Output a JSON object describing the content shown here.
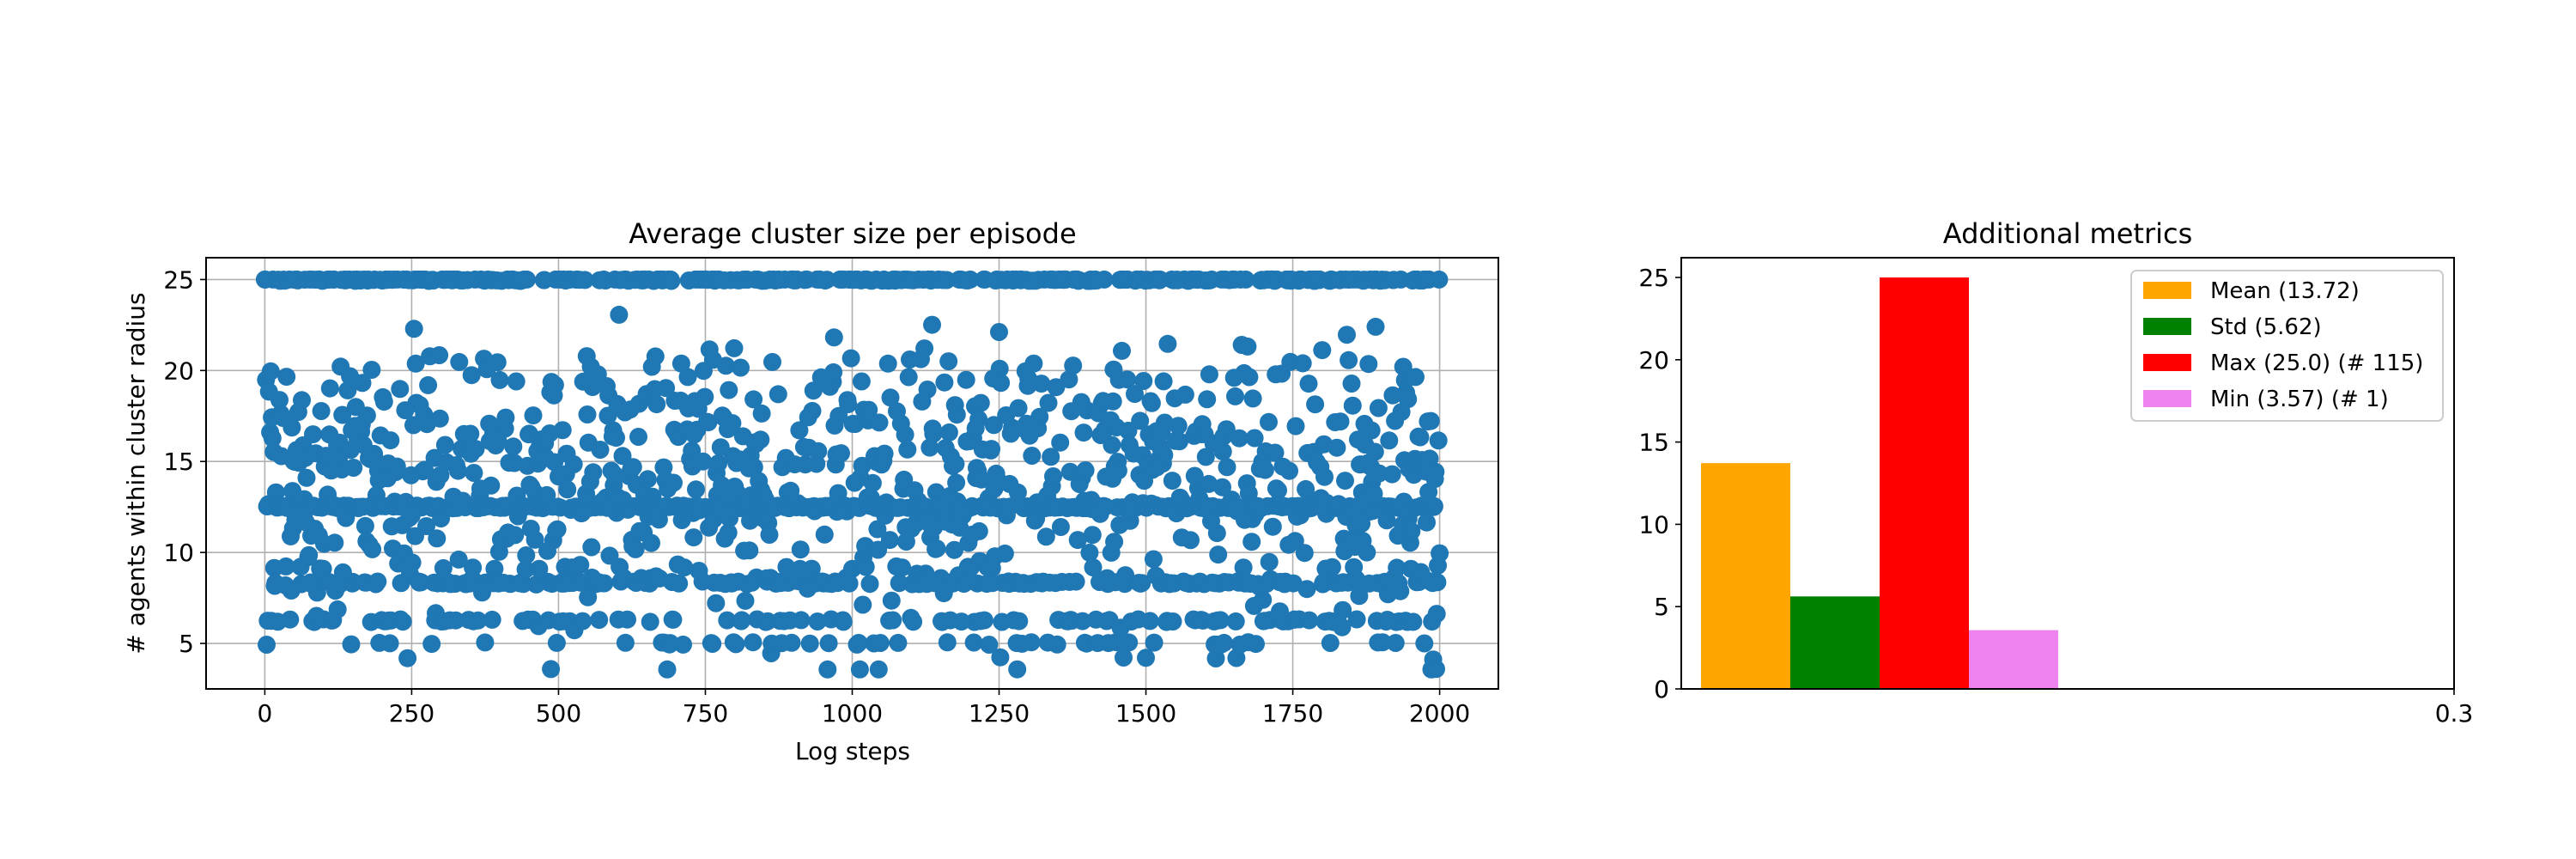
{
  "chart_data": [
    {
      "type": "scatter",
      "title": "Average cluster size per episode",
      "xlabel": "Log steps",
      "ylabel": "# agents within cluster radius",
      "xlim": [
        -100,
        2100
      ],
      "ylim": [
        2.5,
        26.2
      ],
      "xticks": [
        0,
        250,
        500,
        750,
        1000,
        1250,
        1500,
        1750,
        2000
      ],
      "yticks": [
        5,
        10,
        15,
        20,
        25
      ],
      "grid": true,
      "point_color": "#1f77b4",
      "n_points": 2001,
      "x_range": [
        0,
        2000
      ],
      "y_range": [
        3.57,
        25.0
      ],
      "note_levels": "values cluster at multiples of 25/N"
    },
    {
      "type": "bar",
      "title": "Additional metrics",
      "xlabel": "",
      "ylabel": "",
      "ylim": [
        0,
        26.2
      ],
      "yticks": [
        0,
        5,
        10,
        15,
        20,
        25
      ],
      "xtick_labels": [
        "0.3"
      ],
      "grid": false,
      "legend_position": "top-right",
      "series": [
        {
          "name": "Mean (13.72)",
          "value": 13.72,
          "color": "#ffa500"
        },
        {
          "name": "Std (5.62)",
          "value": 5.62,
          "color": "#008000"
        },
        {
          "name": "Max (25.0) (# 115)",
          "value": 25.0,
          "color": "#ff0000"
        },
        {
          "name": "Min (3.57) (# 1)",
          "value": 3.57,
          "color": "#ee82ee"
        }
      ]
    }
  ]
}
